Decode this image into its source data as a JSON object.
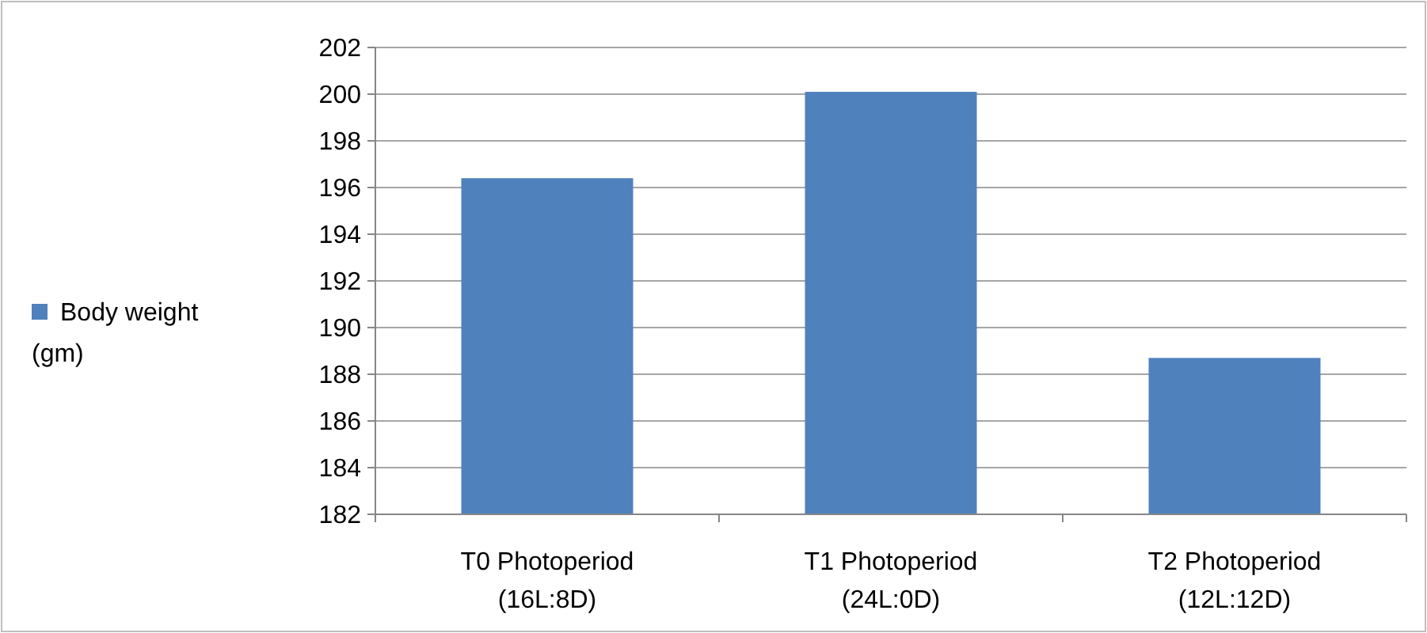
{
  "chart_data": {
    "type": "bar",
    "categories": [
      "T0 Photoperiod\n(16L:8D)",
      "T1 Photoperiod\n(24L:0D)",
      "T2 Photoperiod\n(12L:12D)"
    ],
    "series": [
      {
        "name": "Body weight (gm)",
        "color": "#4f81bd",
        "values": [
          196.4,
          200.1,
          188.7
        ]
      }
    ],
    "ylim": [
      182,
      202
    ],
    "yticks": [
      182,
      184,
      186,
      188,
      190,
      192,
      194,
      196,
      198,
      200,
      202
    ],
    "grid": "y",
    "legend": "left"
  }
}
